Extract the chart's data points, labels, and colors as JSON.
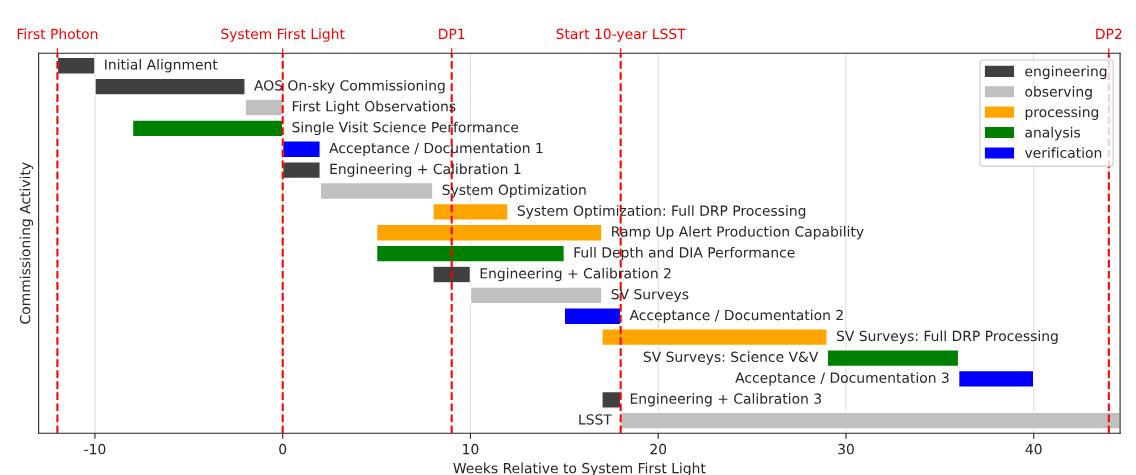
{
  "chart_data": {
    "type": "bar",
    "orientation": "horizontal",
    "xlabel": "Weeks Relative to System First Light",
    "ylabel": "Commissioning Activity",
    "categories": [
      "Initial Alignment",
      "AOS On-sky Commissioning",
      "First Light Observations",
      "Single Visit Science Performance",
      "Acceptance / Documentation 1",
      "Engineering + Calibration 1",
      "System Optimization",
      "System Optimization: Full DRP Processing",
      "Ramp Up Alert Production Capability",
      "Full Depth and DIA Performance",
      "Engineering + Calibration 2",
      "SV Surveys",
      "Acceptance / Documentation 2",
      "SV Surveys: Full DRP Processing",
      "SV Surveys: Science V&V",
      "Acceptance / Documentation 3",
      "Engineering + Calibration 3",
      "LSST"
    ],
    "series": [
      {
        "name": "engineering",
        "color": "#404040",
        "base": [
          -12,
          -10,
          null,
          null,
          null,
          0,
          null,
          null,
          null,
          null,
          8,
          null,
          null,
          null,
          null,
          null,
          17,
          null
        ],
        "values": [
          2,
          8,
          null,
          null,
          null,
          2,
          null,
          null,
          null,
          null,
          2,
          null,
          null,
          null,
          null,
          null,
          1,
          null
        ]
      },
      {
        "name": "observing",
        "color": "#c0c0c0",
        "base": [
          null,
          null,
          -2,
          null,
          null,
          null,
          2,
          null,
          null,
          null,
          null,
          10,
          null,
          null,
          null,
          null,
          null,
          18
        ],
        "values": [
          null,
          null,
          2,
          null,
          null,
          null,
          6,
          null,
          null,
          null,
          null,
          7,
          null,
          null,
          null,
          null,
          null,
          26.6
        ]
      },
      {
        "name": "processing",
        "color": "#ffa500",
        "base": [
          null,
          null,
          null,
          null,
          null,
          null,
          null,
          8,
          5,
          null,
          null,
          null,
          null,
          17,
          null,
          null,
          null,
          null
        ],
        "values": [
          null,
          null,
          null,
          null,
          null,
          null,
          null,
          4,
          12,
          null,
          null,
          null,
          null,
          12,
          null,
          null,
          null,
          null
        ]
      },
      {
        "name": "analysis",
        "color": "#008000",
        "base": [
          null,
          null,
          null,
          -8,
          null,
          null,
          null,
          null,
          null,
          5,
          null,
          null,
          null,
          null,
          29,
          null,
          null,
          null
        ],
        "values": [
          null,
          null,
          null,
          8,
          null,
          null,
          null,
          null,
          null,
          10,
          null,
          null,
          null,
          null,
          7,
          null,
          null,
          null
        ]
      },
      {
        "name": "verification",
        "color": "#0000ff",
        "base": [
          null,
          null,
          null,
          null,
          0,
          null,
          null,
          null,
          null,
          null,
          null,
          null,
          15,
          null,
          null,
          36,
          null,
          null
        ],
        "values": [
          null,
          null,
          null,
          null,
          2,
          null,
          null,
          null,
          null,
          null,
          null,
          null,
          3,
          null,
          null,
          4,
          null,
          null
        ]
      }
    ],
    "xlim": [
      -13,
      44.6
    ],
    "xticks": [
      -10,
      0,
      10,
      20,
      30,
      40
    ],
    "ref_lines": [
      {
        "axis": "x",
        "value": -12,
        "label": "First Photon",
        "color": "#ff0000",
        "line_style": "dashed"
      },
      {
        "axis": "x",
        "value": 0,
        "label": "System First Light",
        "color": "#ff0000",
        "line_style": "dashed"
      },
      {
        "axis": "x",
        "value": 9,
        "label": "DP1",
        "color": "#ff0000",
        "line_style": "dashed"
      },
      {
        "axis": "x",
        "value": 18,
        "label": "Start 10-year LSST",
        "color": "#ff0000",
        "line_style": "dashed"
      },
      {
        "axis": "x",
        "value": 44,
        "label": "DP2",
        "color": "#ff0000",
        "line_style": "dashed"
      }
    ],
    "grid": "x",
    "legend": "top right",
    "tick_labels": "x"
  }
}
